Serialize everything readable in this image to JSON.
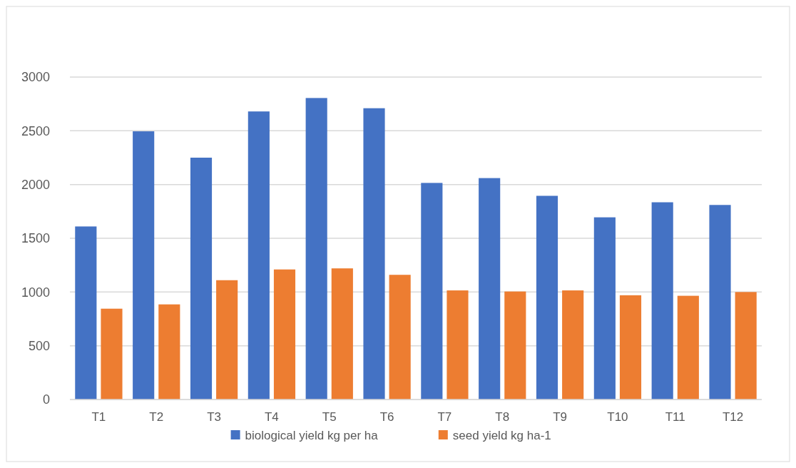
{
  "chart_data": {
    "type": "bar",
    "categories": [
      "T1",
      "T2",
      "T3",
      "T4",
      "T5",
      "T6",
      "T7",
      "T8",
      "T9",
      "T10",
      "T11",
      "T12"
    ],
    "series": [
      {
        "name": "biological yield kg per ha",
        "color": "#4472c4",
        "values": [
          1610,
          2495,
          2250,
          2680,
          2805,
          2710,
          2015,
          2060,
          1895,
          1695,
          1835,
          1810
        ]
      },
      {
        "name": "seed yield kg ha-1",
        "color": "#ed7d31",
        "values": [
          845,
          885,
          1110,
          1210,
          1220,
          1160,
          1015,
          1005,
          1015,
          970,
          965,
          1000
        ]
      }
    ],
    "ylim": [
      0,
      3000
    ],
    "yticks": [
      0,
      500,
      1000,
      1500,
      2000,
      2500,
      3000
    ],
    "grid": "y",
    "legend": "bottom"
  }
}
